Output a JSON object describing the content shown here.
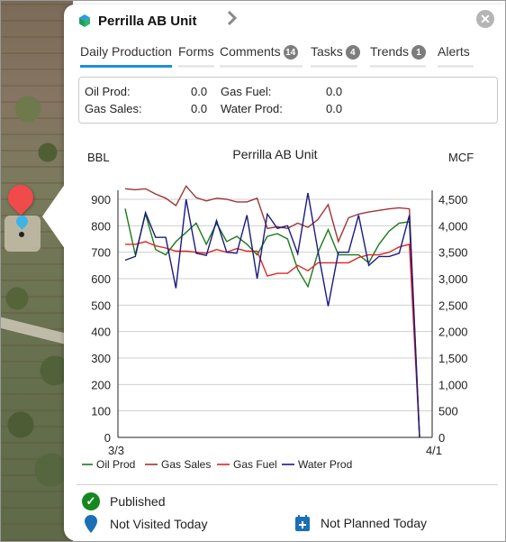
{
  "header": {
    "title": "Perrilla AB Unit"
  },
  "tabs": [
    {
      "label": "Daily Production",
      "active": true
    },
    {
      "label": "Forms"
    },
    {
      "label": "Comments",
      "badge": "14"
    },
    {
      "label": "Tasks",
      "badge": "4"
    },
    {
      "label": "Trends",
      "badge": "1"
    },
    {
      "label": "Alerts"
    }
  ],
  "summary": {
    "oil_prod_label": "Oil Prod:",
    "oil_prod_value": "0.0",
    "gas_fuel_label": "Gas Fuel:",
    "gas_fuel_value": "0.0",
    "gas_sales_label": "Gas Sales:",
    "gas_sales_value": "0.0",
    "water_prod_label": "Water Prod:",
    "water_prod_value": "0.0"
  },
  "status": {
    "published": "Published",
    "visited": "Not Visited Today",
    "planned": "Not Planned Today"
  },
  "colors": {
    "accent": "#1f8ed9",
    "oil": "#1a7a1a",
    "gas_sales": "#a03434",
    "gas_fuel": "#e02424",
    "water": "#1a1a80",
    "published": "#16861e",
    "pin_red": "#f04a4a",
    "pin_blue": "#3cb5e6"
  },
  "icons": {
    "unit": "cube-icon",
    "next": "chevron-right-icon",
    "close": "close-icon",
    "published": "check-circle-icon",
    "visited": "map-pin-icon",
    "planned": "calendar-plus-icon"
  },
  "chart_data": {
    "type": "line",
    "title": "Perrilla AB Unit",
    "ylabel_left": "BBL",
    "ylabel_right": "MCF",
    "x_start_label": "3/3",
    "x_end_label": "4/1",
    "ylim_left": [
      0,
      900
    ],
    "yticks_left": [
      0,
      100,
      200,
      300,
      400,
      500,
      600,
      700,
      800,
      900
    ],
    "ylim_right": [
      0,
      4500
    ],
    "yticks_right": [
      "0",
      "500",
      "1,000",
      "1,500",
      "2,000",
      "2,500",
      "3,000",
      "3,500",
      "4,000",
      "4,500"
    ],
    "grid": true,
    "legend_position": "bottom",
    "series": [
      {
        "name": "Oil Prod",
        "axis": "left",
        "color": "#1a7a1a",
        "values": [
          865,
          690,
          845,
          710,
          690,
          740,
          775,
          810,
          730,
          810,
          740,
          760,
          730,
          690,
          760,
          770,
          750,
          635,
          570,
          700,
          785,
          690,
          690,
          690,
          660,
          730,
          780,
          810,
          815,
          0
        ]
      },
      {
        "name": "Gas Sales",
        "axis": "right",
        "color": "#a03434",
        "values": [
          4700,
          4680,
          4700,
          4600,
          4520,
          4380,
          4750,
          4530,
          4470,
          4520,
          4500,
          4450,
          4450,
          4520,
          3950,
          3980,
          3950,
          4050,
          3970,
          4120,
          4400,
          3700,
          4150,
          4220,
          4260,
          4290,
          4320,
          4340,
          4320,
          0
        ]
      },
      {
        "name": "Gas Fuel",
        "axis": "right",
        "color": "#e02424",
        "values": [
          3650,
          3650,
          3700,
          3620,
          3580,
          3520,
          3520,
          3500,
          3480,
          3550,
          3500,
          3570,
          3520,
          3520,
          3050,
          3100,
          3100,
          3250,
          3150,
          3300,
          3300,
          3300,
          3300,
          3400,
          3450,
          3450,
          3500,
          3600,
          3650,
          0
        ]
      },
      {
        "name": "Water Prod",
        "axis": "right",
        "color": "#1a1a80",
        "values": [
          3350,
          3420,
          4250,
          3780,
          3780,
          2820,
          4500,
          3480,
          3440,
          4100,
          3500,
          3480,
          4200,
          3000,
          4220,
          3950,
          4000,
          3470,
          4620,
          3520,
          2480,
          3500,
          3500,
          4200,
          3250,
          3420,
          3420,
          3480,
          4200,
          0
        ]
      }
    ]
  }
}
